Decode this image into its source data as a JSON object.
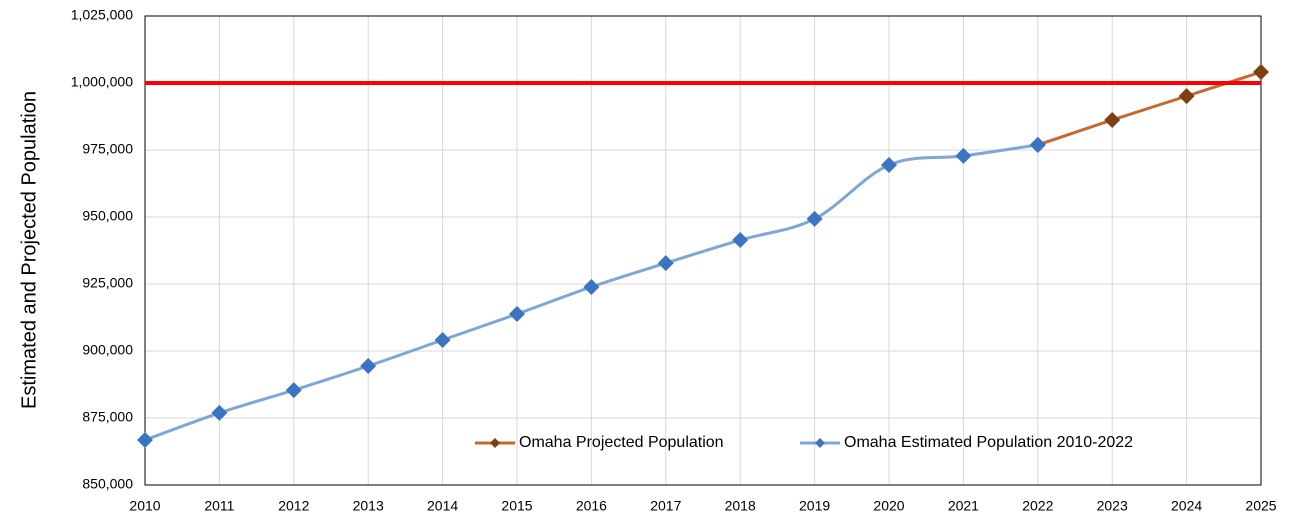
{
  "chart_data": {
    "type": "line",
    "y_label": "Estimated and Projected Population",
    "x": [
      2010,
      2011,
      2012,
      2013,
      2014,
      2015,
      2016,
      2017,
      2018,
      2019,
      2020,
      2021,
      2022,
      2023,
      2024,
      2025
    ],
    "xlim": [
      2010,
      2025
    ],
    "xticks": [
      2010,
      2011,
      2012,
      2013,
      2014,
      2015,
      2016,
      2017,
      2018,
      2019,
      2020,
      2021,
      2022,
      2023,
      2024,
      2025
    ],
    "ylim": [
      850000,
      1025000
    ],
    "yticks": [
      {
        "value": 850000,
        "label": "850,000"
      },
      {
        "value": 875000,
        "label": "875,000"
      },
      {
        "value": 900000,
        "label": "900,000"
      },
      {
        "value": 925000,
        "label": "925,000"
      },
      {
        "value": 950000,
        "label": "950,000"
      },
      {
        "value": 975000,
        "label": "975,000"
      },
      {
        "value": 1000000,
        "label": "1,000,000"
      },
      {
        "value": 1025000,
        "label": "1,025,000"
      }
    ],
    "grid": true,
    "hline": {
      "value": 1000000,
      "color": "#ff0000"
    },
    "series": [
      {
        "name": "Omaha Projected Population",
        "color": "#c5692c",
        "marker_color": "#7f3f12",
        "values": [
          null,
          null,
          null,
          null,
          null,
          null,
          null,
          null,
          null,
          null,
          null,
          null,
          976900,
          986200,
          995100,
          1004100
        ]
      },
      {
        "name": "Omaha Estimated Population 2010-2022",
        "color": "#7ea6d6",
        "marker_color": "#3b74c3",
        "values": [
          866800,
          876900,
          885400,
          894400,
          904100,
          913800,
          923900,
          932800,
          941400,
          949300,
          969400,
          972800,
          976900,
          null,
          null,
          null
        ]
      }
    ]
  }
}
